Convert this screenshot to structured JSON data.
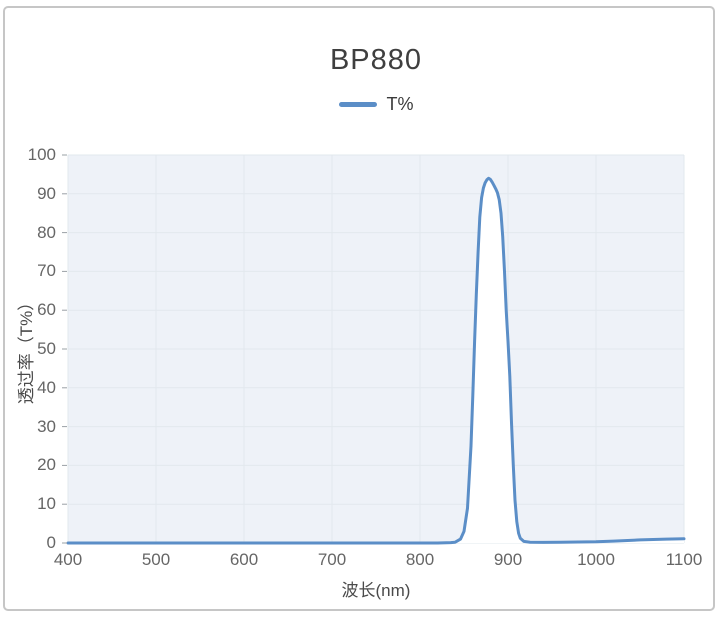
{
  "window": {
    "border_color": "#c6c6c6",
    "background": "#ffffff"
  },
  "chart_data": {
    "type": "line",
    "title": "BP880",
    "legend": [
      {
        "label": "T%",
        "color": "#5b8ec7"
      }
    ],
    "legend_position": "top-center",
    "xlabel": "波长(nm)",
    "ylabel": "透过率（T%）",
    "xlim": [
      400,
      1100
    ],
    "ylim": [
      0,
      100
    ],
    "x_ticks": [
      400,
      500,
      600,
      700,
      800,
      900,
      1000,
      1100
    ],
    "y_ticks": [
      0,
      10,
      20,
      30,
      40,
      50,
      60,
      70,
      80,
      90,
      100
    ],
    "grid": true,
    "plot_bg": "#eef2f8",
    "grid_color": "#e2e8ee",
    "tick_color": "#9aa0a6",
    "area_fill_under_line": "#ffffff",
    "series": [
      {
        "name": "T%",
        "color": "#5b8ec7",
        "points": [
          [
            400,
            0
          ],
          [
            450,
            0
          ],
          [
            500,
            0
          ],
          [
            550,
            0
          ],
          [
            600,
            0
          ],
          [
            650,
            0
          ],
          [
            700,
            0
          ],
          [
            750,
            0
          ],
          [
            800,
            0
          ],
          [
            820,
            0
          ],
          [
            835,
            0.1
          ],
          [
            840,
            0.2
          ],
          [
            846,
            1
          ],
          [
            850,
            3
          ],
          [
            854,
            9
          ],
          [
            858,
            25
          ],
          [
            860,
            38
          ],
          [
            862,
            52
          ],
          [
            864,
            64
          ],
          [
            866,
            75
          ],
          [
            868,
            84
          ],
          [
            870,
            89
          ],
          [
            872,
            91.5
          ],
          [
            874,
            92.8
          ],
          [
            876,
            93.6
          ],
          [
            878,
            94
          ],
          [
            880,
            93.7
          ],
          [
            882,
            93
          ],
          [
            884,
            92.2
          ],
          [
            886,
            91.3
          ],
          [
            888,
            90.3
          ],
          [
            890,
            88.5
          ],
          [
            892,
            85
          ],
          [
            894,
            79
          ],
          [
            896,
            70
          ],
          [
            898,
            60
          ],
          [
            900,
            52
          ],
          [
            902,
            43
          ],
          [
            904,
            31
          ],
          [
            906,
            20
          ],
          [
            908,
            11
          ],
          [
            910,
            5.5
          ],
          [
            912,
            2.5
          ],
          [
            914,
            1.2
          ],
          [
            918,
            0.4
          ],
          [
            925,
            0.2
          ],
          [
            940,
            0.15
          ],
          [
            960,
            0.2
          ],
          [
            980,
            0.25
          ],
          [
            1000,
            0.3
          ],
          [
            1020,
            0.5
          ],
          [
            1050,
            0.8
          ],
          [
            1080,
            1.0
          ],
          [
            1100,
            1.1
          ]
        ]
      }
    ]
  }
}
